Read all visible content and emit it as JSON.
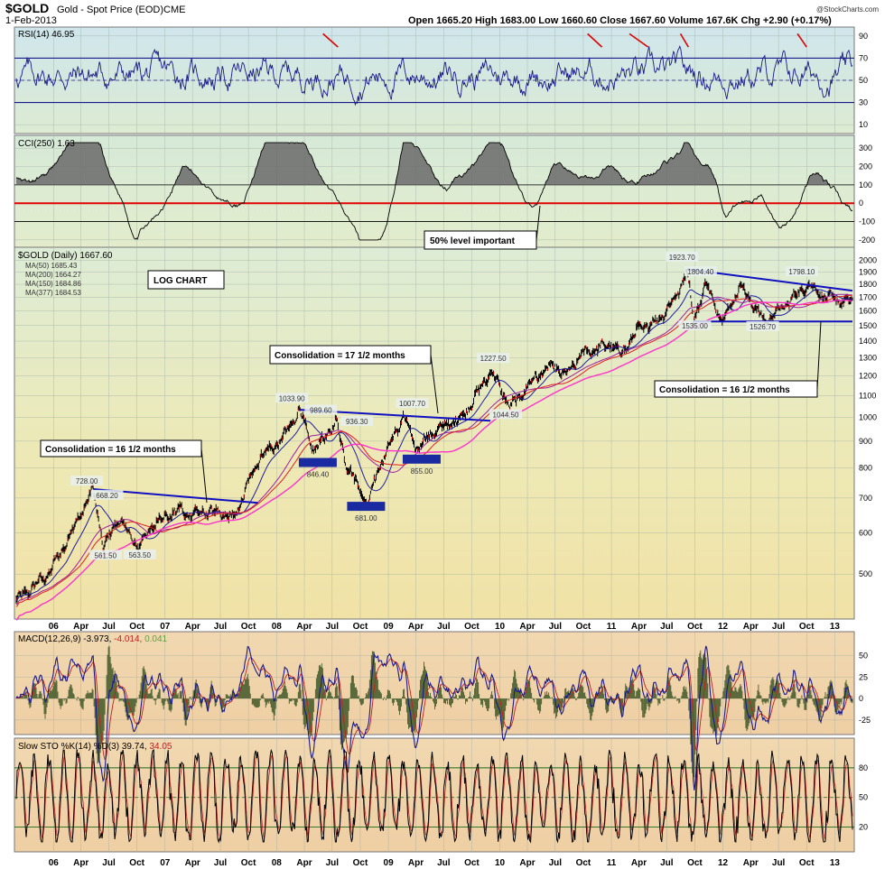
{
  "header": {
    "symbol": "$GOLD",
    "description": "Gold - Spot Price (EOD)",
    "exchange": "CME",
    "date": "1-Feb-2013",
    "ohlc": "Open 1665.20  High 1683.00  Low 1660.60  Close 1667.60  Volume 167.6K  Chg +2.90 (+0.17%)",
    "chg_arrow": "▲",
    "signature": "@StockCharts.com"
  },
  "chart_data": [
    {
      "type": "line",
      "panel": "rsi",
      "title": "RSI(14) 46.95",
      "yticks": [
        90,
        70,
        50,
        30,
        10
      ],
      "ylim": [
        2,
        98
      ],
      "levels": [
        70,
        50,
        30
      ],
      "last_value": 46.95
    },
    {
      "type": "area",
      "panel": "cci",
      "title": "CCI(250) 1.63",
      "yticks": [
        300,
        200,
        100,
        0,
        -100,
        -200
      ],
      "ylim": [
        -240,
        370
      ],
      "levels": [
        100,
        0,
        -100
      ],
      "last_value": 1.63,
      "annotations": [
        "50% level important"
      ]
    },
    {
      "type": "line",
      "panel": "price",
      "scale": "log",
      "title": "$GOLD (Daily) 1667.60",
      "legend": [
        "MA(50) 1685.43",
        "MA(200) 1664.27",
        "MA(150) 1684.86",
        "MA(377) 1684.53"
      ],
      "legend_colors": [
        "#1f1fa0",
        "#e02020",
        "#a020a0",
        "#ff33cc"
      ],
      "yticks": [
        2000,
        1900,
        1800,
        1700,
        1600,
        1500,
        1400,
        1300,
        1200,
        1100,
        1000,
        900,
        800,
        700,
        600,
        500
      ],
      "ylim": [
        410,
        2120
      ],
      "xlim": [
        "2005-09-01",
        "2013-02-28"
      ],
      "x_ticks": [
        {
          "label": "06",
          "date": "2006-01-01"
        },
        {
          "label": "Apr",
          "date": "2006-04-01"
        },
        {
          "label": "Jul",
          "date": "2006-07-01"
        },
        {
          "label": "Oct",
          "date": "2006-10-01"
        },
        {
          "label": "07",
          "date": "2007-01-01"
        },
        {
          "label": "Apr",
          "date": "2007-04-01"
        },
        {
          "label": "Jul",
          "date": "2007-07-01"
        },
        {
          "label": "Oct",
          "date": "2007-10-01"
        },
        {
          "label": "08",
          "date": "2008-01-01"
        },
        {
          "label": "Apr",
          "date": "2008-04-01"
        },
        {
          "label": "Jul",
          "date": "2008-07-01"
        },
        {
          "label": "Oct",
          "date": "2008-10-01"
        },
        {
          "label": "09",
          "date": "2009-01-01"
        },
        {
          "label": "Apr",
          "date": "2009-04-01"
        },
        {
          "label": "Jul",
          "date": "2009-07-01"
        },
        {
          "label": "Oct",
          "date": "2009-10-01"
        },
        {
          "label": "10",
          "date": "2010-01-01"
        },
        {
          "label": "Apr",
          "date": "2010-04-01"
        },
        {
          "label": "Jul",
          "date": "2010-07-01"
        },
        {
          "label": "Oct",
          "date": "2010-10-01"
        },
        {
          "label": "11",
          "date": "2011-01-01"
        },
        {
          "label": "Apr",
          "date": "2011-04-01"
        },
        {
          "label": "Jul",
          "date": "2011-07-01"
        },
        {
          "label": "Oct",
          "date": "2011-10-01"
        },
        {
          "label": "12",
          "date": "2012-01-01"
        },
        {
          "label": "Apr",
          "date": "2012-04-01"
        },
        {
          "label": "Jul",
          "date": "2012-07-01"
        },
        {
          "label": "Oct",
          "date": "2012-10-01"
        },
        {
          "label": "13",
          "date": "2013-01-01"
        }
      ],
      "series": [
        {
          "x": [
            "2005-09-01",
            "2005-12-15",
            "2006-02-01",
            "2006-05-11",
            "2006-06-14",
            "2006-08-01",
            "2006-10-05",
            "2006-12-01",
            "2007-02-26",
            "2007-03-05",
            "2007-06-01",
            "2007-08-16",
            "2007-10-01",
            "2007-11-07",
            "2008-01-15",
            "2008-03-17",
            "2008-05-01",
            "2008-07-15",
            "2008-08-15",
            "2008-10-24",
            "2008-12-01",
            "2009-02-20",
            "2009-04-01",
            "2009-06-01",
            "2009-09-01",
            "2009-12-03",
            "2010-02-05",
            "2010-05-01",
            "2010-06-28",
            "2010-08-01",
            "2010-10-01",
            "2011-01-01",
            "2011-02-01",
            "2011-04-01",
            "2011-06-01",
            "2011-08-01",
            "2011-09-06",
            "2011-09-26",
            "2011-11-08",
            "2011-12-29",
            "2012-02-28",
            "2012-05-16",
            "2012-07-01",
            "2012-10-05",
            "2012-12-01",
            "2013-01-15",
            "2013-02-01"
          ],
          "values": [
            445,
            500,
            560,
            728,
            561.5,
            640,
            563.5,
            630,
            668.2,
            650,
            660,
            640,
            750,
            840,
            900,
            1033.9,
            860,
            980,
            820,
            681,
            800,
            1007.7,
            870,
            940,
            1000,
            1227.5,
            1044.5,
            1200,
            1260,
            1200,
            1330,
            1380,
            1320,
            1480,
            1530,
            1700,
            1923.7,
            1535,
            1804.4,
            1526.7,
            1790,
            1526.7,
            1600,
            1798.1,
            1700,
            1680,
            1667.6
          ]
        }
      ],
      "price_labels": [
        "728.00",
        "668.20",
        "561.50",
        "563.50",
        "1033.90",
        "989.60",
        "846.40",
        "936.30",
        "681.00",
        "1007.70",
        "855.00",
        "1227.50",
        "1044.50",
        "1923.70",
        "1804.40",
        "1535.00",
        "1526.70",
        "1798.10"
      ],
      "annotations": [
        "LOG CHART",
        "Consolidation = 16 1/2 months",
        "Consolidation = 17 1/2 months",
        "Consolidation = 16 1/2 months"
      ]
    },
    {
      "type": "line",
      "panel": "macd",
      "title": "MACD(12,26,9) -3.973, -4.014, 0.041",
      "title_parts": [
        "MACD(12,26,9) -3.973,",
        "-4.014,",
        "0.041"
      ],
      "yticks": [
        50,
        25,
        0,
        -25
      ],
      "ylim": [
        -42,
        78
      ]
    },
    {
      "type": "line",
      "panel": "stoch",
      "title": "Slow STO %K(14) %D(3) 39.74, 34.05",
      "title_parts": [
        "Slow STO %K(14) %D(3) 39.74,",
        "34.05"
      ],
      "yticks": [
        80,
        50,
        20
      ],
      "ylim": [
        -5,
        110
      ],
      "levels": [
        80,
        50,
        20
      ]
    }
  ]
}
